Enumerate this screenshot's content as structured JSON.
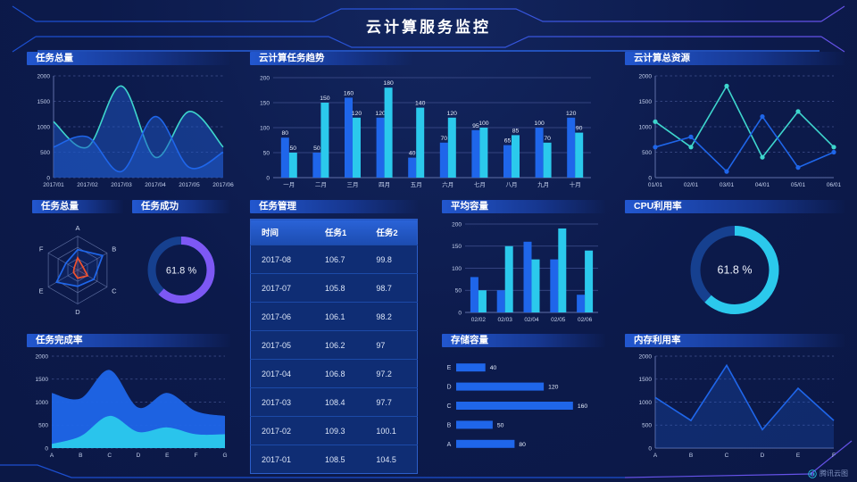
{
  "header": {
    "title": "云计算服务监控"
  },
  "watermark": {
    "label": "腾讯云图"
  },
  "colors": {
    "background": "#0c1a4b",
    "blue": "#1f66ea",
    "cyan": "#2bc9ec",
    "teal": "#3ed6cd",
    "purple": "#7d58f4",
    "red": "#f0512e",
    "track": "#16408f",
    "areaFill": "#1d55c4",
    "grid": "#41518f",
    "radarGrid": "#5c6c9e",
    "axisLine": "#5f6fa8",
    "axisText": "#c6d2ee",
    "frameBlue": "#1c4fd0",
    "framePurple": "#6552e8"
  },
  "panels": {
    "task_total_line": {
      "title": "任务总量"
    },
    "task_trend": {
      "title": "云计算任务趋势"
    },
    "total_resources": {
      "title": "云计算总资源"
    },
    "task_total_radar": {
      "title": "任务总量"
    },
    "task_success": {
      "title": "任务成功",
      "value": "61.8 %"
    },
    "task_table": {
      "title": "任务管理"
    },
    "avg_capacity": {
      "title": "平均容量"
    },
    "cpu_usage": {
      "title": "CPU利用率",
      "value": "61.8 %"
    },
    "task_completion": {
      "title": "任务完成率"
    },
    "storage": {
      "title": "存储容量"
    },
    "memory": {
      "title": "内存利用率"
    }
  },
  "table": {
    "headers": [
      "时间",
      "任务1",
      "任务2"
    ],
    "rows": [
      [
        "2017-08",
        "106.7",
        "99.8"
      ],
      [
        "2017-07",
        "105.8",
        "98.7"
      ],
      [
        "2017-06",
        "106.1",
        "98.2"
      ],
      [
        "2017-05",
        "106.2",
        "97"
      ],
      [
        "2017-04",
        "106.8",
        "97.2"
      ],
      [
        "2017-03",
        "108.4",
        "97.7"
      ],
      [
        "2017-02",
        "109.3",
        "100.1"
      ],
      [
        "2017-01",
        "108.5",
        "104.5"
      ]
    ]
  },
  "chart_data": [
    {
      "id": "task_total_line",
      "type": "area",
      "smooth": true,
      "title": "任务总量",
      "x": [
        "2017/01",
        "2017/02",
        "2017/03",
        "2017/04",
        "2017/05",
        "2017/06"
      ],
      "series": [
        {
          "name": "series1",
          "color": "teal",
          "fill": "areaFill",
          "fill_opacity": 0.5,
          "values": [
            1100,
            600,
            1800,
            400,
            1300,
            600
          ]
        },
        {
          "name": "series2",
          "color": "blue",
          "fill": "areaFill",
          "fill_opacity": 0.5,
          "values": [
            600,
            800,
            120,
            1200,
            200,
            500
          ]
        }
      ],
      "ylim": [
        0,
        2000
      ],
      "yticks": [
        0,
        500,
        1000,
        1500,
        2000
      ]
    },
    {
      "id": "task_trend",
      "type": "bar",
      "labels": true,
      "title": "云计算任务趋势",
      "categories": [
        "一月",
        "二月",
        "三月",
        "四月",
        "五月",
        "六月",
        "七月",
        "八月",
        "九月",
        "十月"
      ],
      "series": [
        {
          "name": "任务1",
          "color": "blue",
          "values": [
            80,
            50,
            160,
            120,
            40,
            70,
            95,
            65,
            100,
            120
          ]
        },
        {
          "name": "任务2",
          "color": "cyan",
          "values": [
            50,
            150,
            120,
            180,
            140,
            120,
            100,
            85,
            70,
            90
          ]
        }
      ],
      "ylim": [
        0,
        200
      ],
      "yticks": [
        0,
        50,
        100,
        150,
        200
      ]
    },
    {
      "id": "total_resources",
      "type": "line",
      "title": "云计算总资源",
      "x": [
        "01/01",
        "02/01",
        "03/01",
        "04/01",
        "05/01",
        "06/01"
      ],
      "series": [
        {
          "name": "series1",
          "color": "teal",
          "values": [
            1100,
            600,
            1800,
            400,
            1300,
            600
          ]
        },
        {
          "name": "series2",
          "color": "blue",
          "values": [
            600,
            800,
            120,
            1200,
            200,
            500
          ]
        }
      ],
      "ylim": [
        0,
        2000
      ],
      "yticks": [
        0,
        500,
        1000,
        1500,
        2000
      ]
    },
    {
      "id": "task_total_radar",
      "type": "radar",
      "title": "任务总量",
      "axes": [
        "A",
        "B",
        "C",
        "D",
        "E",
        "F"
      ],
      "max": 100,
      "series": [
        {
          "name": "blue",
          "color": "blue",
          "values": [
            60,
            85,
            55,
            48,
            72,
            40
          ]
        },
        {
          "name": "red",
          "color": "red",
          "values": [
            36,
            18,
            34,
            24,
            14,
            12
          ]
        }
      ]
    },
    {
      "id": "task_success",
      "type": "donut",
      "title": "任务成功",
      "value": 61.8,
      "label": "61.8 %",
      "color": "purple"
    },
    {
      "id": "avg_capacity",
      "type": "bar",
      "labels": false,
      "title": "平均容量",
      "categories": [
        "02/02",
        "02/03",
        "02/04",
        "02/05",
        "02/06"
      ],
      "series": [
        {
          "name": "series1",
          "color": "blue",
          "values": [
            80,
            50,
            160,
            120,
            40
          ]
        },
        {
          "name": "series2",
          "color": "cyan",
          "values": [
            50,
            150,
            120,
            190,
            140
          ]
        }
      ],
      "ylim": [
        0,
        200
      ],
      "yticks": [
        0,
        50,
        100,
        150,
        200
      ]
    },
    {
      "id": "cpu_usage",
      "type": "donut",
      "title": "CPU利用率",
      "value": 61.8,
      "label": "61.8 %",
      "color": "cyan"
    },
    {
      "id": "task_completion",
      "type": "stacked_area",
      "title": "任务完成率",
      "x": [
        "A",
        "B",
        "C",
        "D",
        "E",
        "F",
        "G"
      ],
      "series": [
        {
          "name": "layer-blue",
          "color": "blue",
          "values": [
            1200,
            1080,
            1700,
            880,
            1200,
            800,
            700
          ]
        },
        {
          "name": "layer-cyan",
          "color": "cyan",
          "values": [
            90,
            260,
            700,
            350,
            450,
            300,
            300
          ]
        }
      ],
      "ylim": [
        0,
        2000
      ],
      "yticks": [
        0,
        500,
        1000,
        1500,
        2000
      ]
    },
    {
      "id": "storage",
      "type": "hbar",
      "title": "存储容量",
      "categories": [
        "E",
        "D",
        "C",
        "B",
        "A"
      ],
      "values": [
        40,
        120,
        160,
        50,
        80
      ],
      "xlim": [
        0,
        170
      ]
    },
    {
      "id": "memory",
      "type": "area",
      "smooth": false,
      "title": "内存利用率",
      "x": [
        "A",
        "B",
        "C",
        "D",
        "E",
        "F"
      ],
      "series": [
        {
          "name": "series1",
          "color": "blue",
          "fill": "areaFill",
          "fill_opacity": 0.3,
          "values": [
            1100,
            600,
            1800,
            400,
            1300,
            600
          ]
        }
      ],
      "ylim": [
        0,
        2000
      ],
      "yticks": [
        0,
        500,
        1000,
        1500,
        2000
      ]
    }
  ]
}
